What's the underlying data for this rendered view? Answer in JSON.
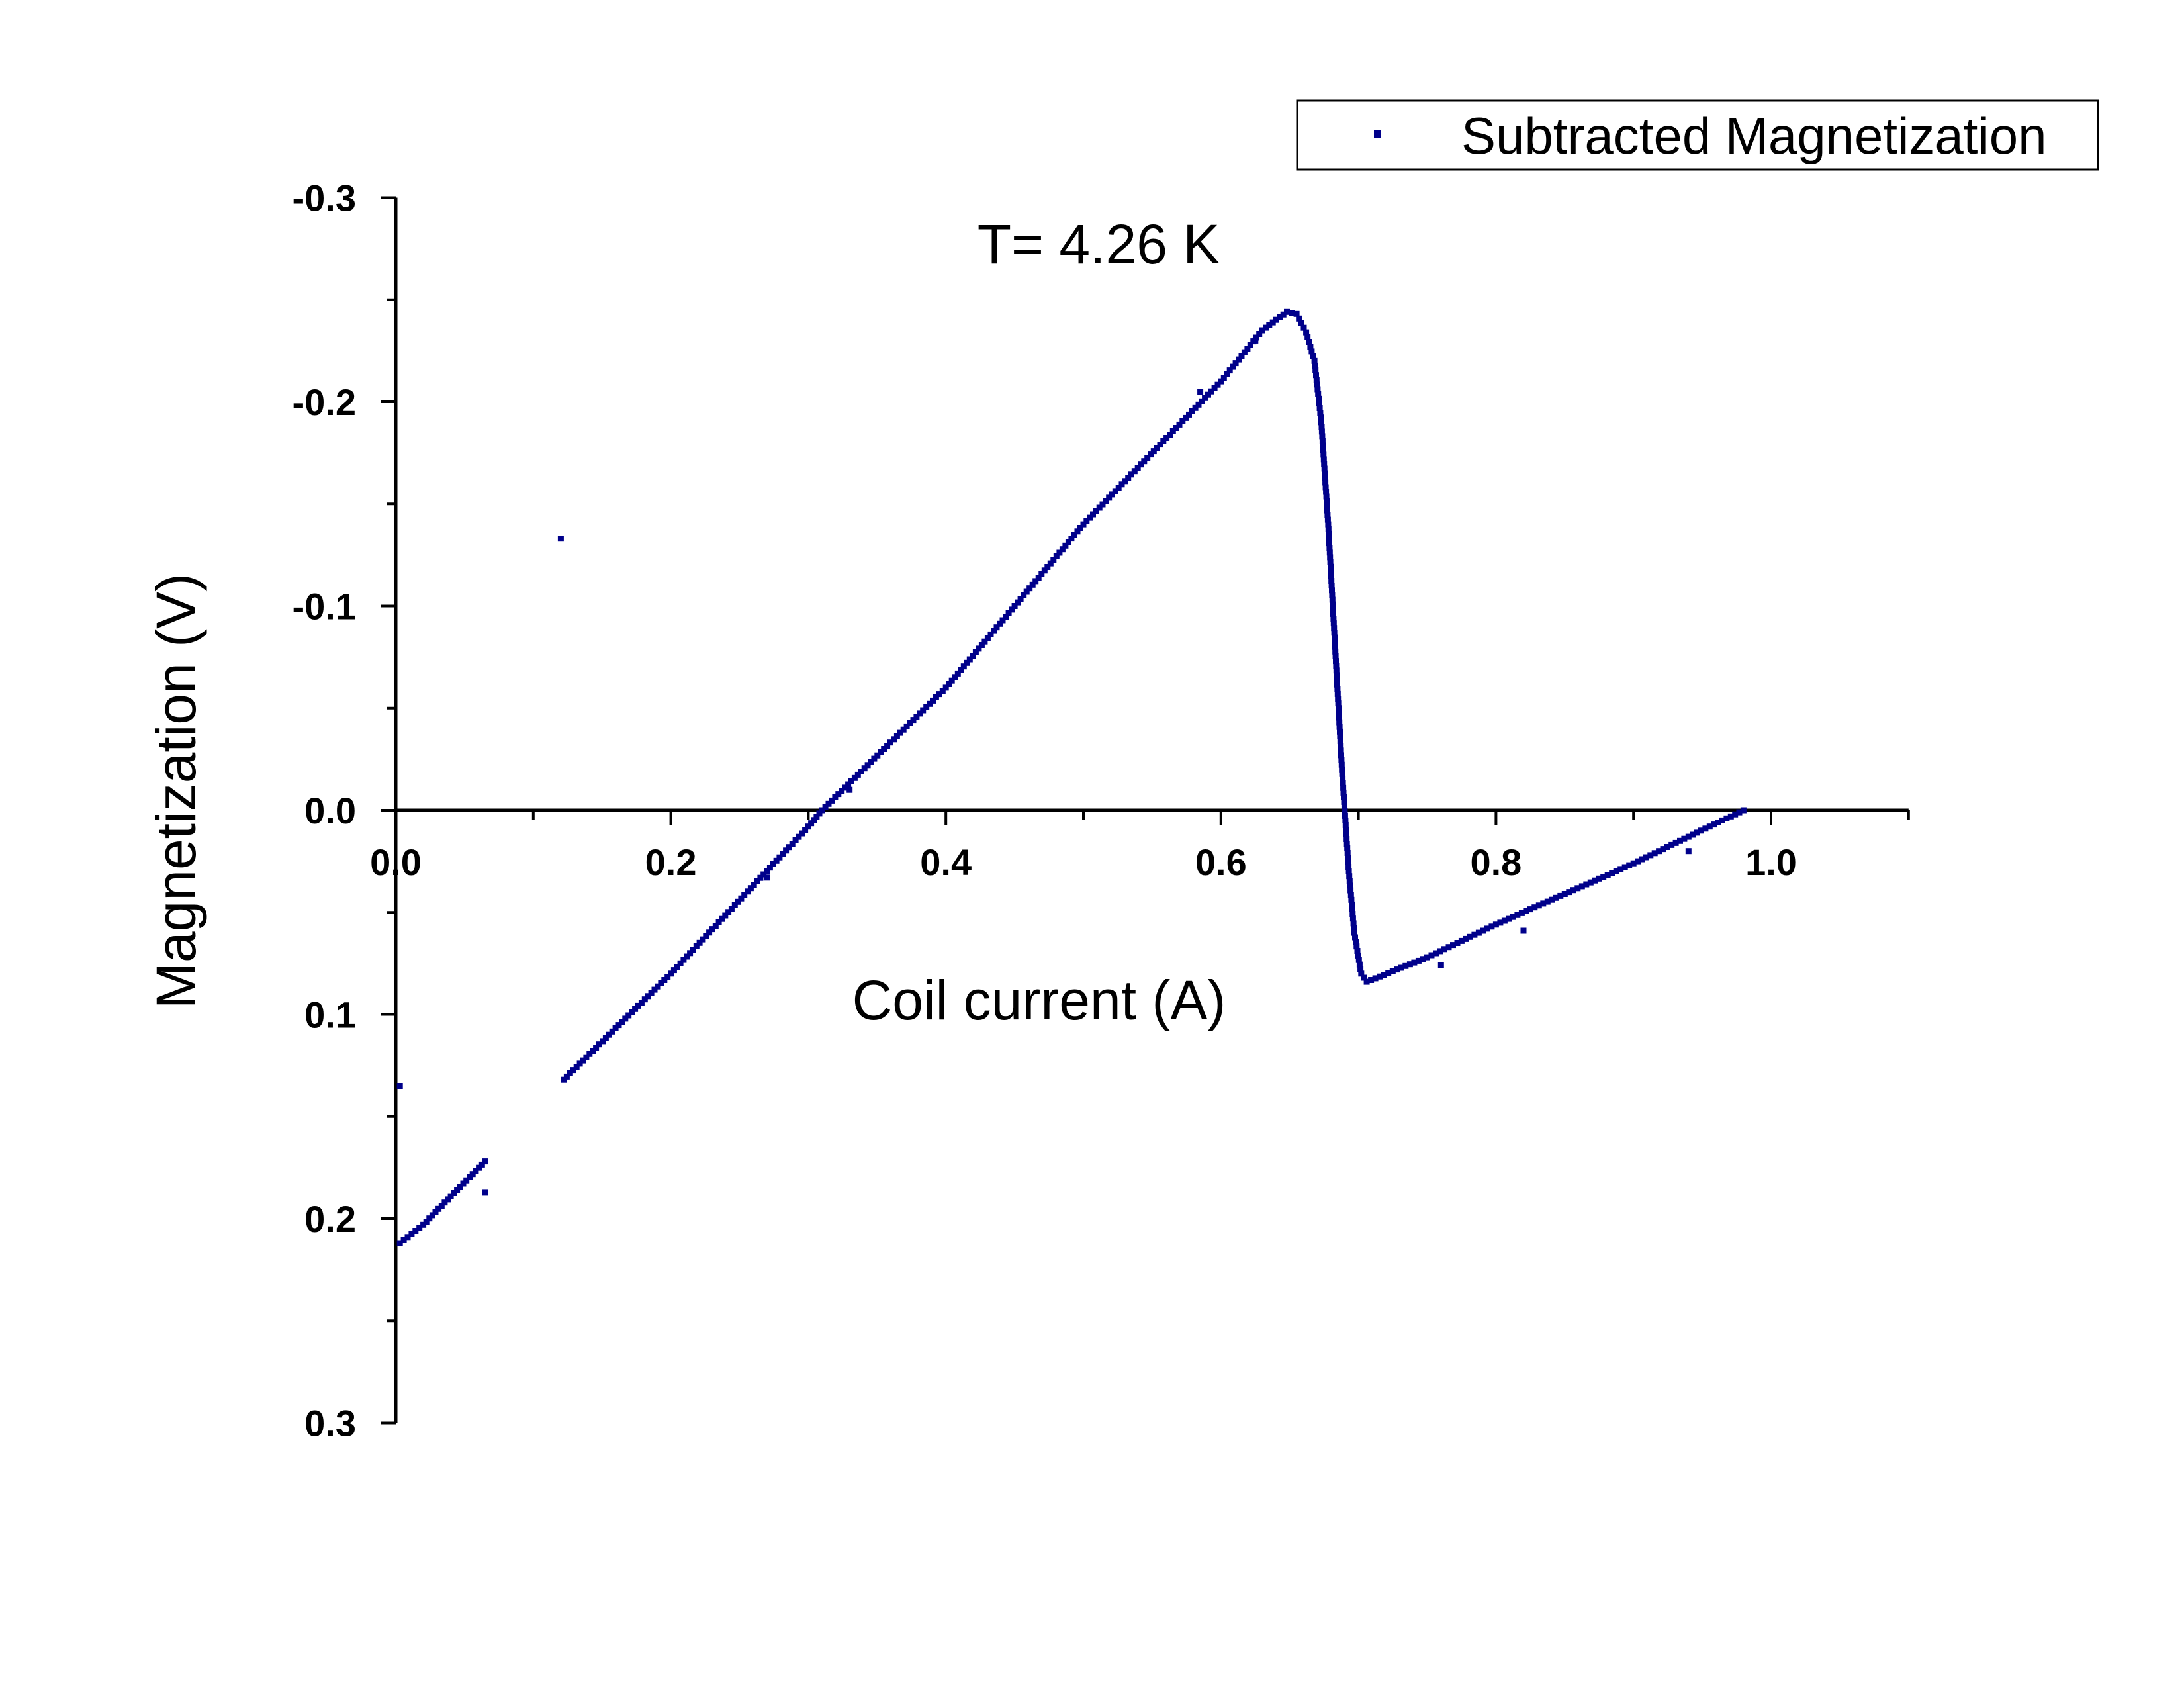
{
  "chart_data": {
    "type": "scatter",
    "title": "",
    "annotation": "T= 4.26 K",
    "xlabel": "Coil current (A)",
    "ylabel": "Magnetization (V)",
    "xlim": [
      0.0,
      1.1
    ],
    "ylim": [
      0.3,
      -0.3
    ],
    "y_axis_inverted": true,
    "x_ticks": [
      "0.0",
      "0.2",
      "0.4",
      "0.6",
      "0.8",
      "1.0"
    ],
    "x_tick_values": [
      0.0,
      0.2,
      0.4,
      0.6,
      0.8,
      1.0
    ],
    "y_ticks": [
      "-0.3",
      "-0.2",
      "-0.1",
      "0.0",
      "0.1",
      "0.2",
      "0.3"
    ],
    "y_tick_values": [
      -0.3,
      -0.2,
      -0.1,
      0.0,
      0.1,
      0.2,
      0.3
    ],
    "grid": false,
    "legend_position": "top-right",
    "series": [
      {
        "name": "Subtracted Magnetization",
        "color": "#00008B",
        "marker": "square",
        "segments": [
          [
            [
              0.003,
              0.212
            ],
            [
              0.02,
              0.203
            ],
            [
              0.04,
              0.189
            ],
            [
              0.065,
              0.172
            ]
          ],
          [
            [
              0.122,
              0.132
            ],
            [
              0.2,
              0.08
            ],
            [
              0.3,
              0.008
            ],
            [
              0.31,
              0.0
            ],
            [
              0.4,
              -0.06
            ],
            [
              0.5,
              -0.14
            ],
            [
              0.6,
              -0.21
            ],
            [
              0.63,
              -0.235
            ],
            [
              0.648,
              -0.244
            ],
            [
              0.655,
              -0.243
            ],
            [
              0.662,
              -0.234
            ],
            [
              0.668,
              -0.22
            ],
            [
              0.673,
              -0.19
            ],
            [
              0.678,
              -0.14
            ],
            [
              0.683,
              -0.08
            ],
            [
              0.688,
              -0.02
            ],
            [
              0.693,
              0.03
            ],
            [
              0.697,
              0.06
            ],
            [
              0.702,
              0.08
            ],
            [
              0.706,
              0.084
            ],
            [
              0.75,
              0.072
            ],
            [
              0.8,
              0.056
            ],
            [
              0.9,
              0.026
            ],
            [
              0.98,
              0.0
            ]
          ]
        ],
        "outliers": [
          [
            0.12,
            -0.133
          ],
          [
            0.003,
            0.135
          ],
          [
            0.065,
            0.187
          ],
          [
            0.27,
            0.033
          ],
          [
            0.33,
            -0.01
          ],
          [
            0.585,
            -0.205
          ],
          [
            0.625,
            -0.23
          ],
          [
            0.76,
            0.076
          ],
          [
            0.82,
            0.059
          ],
          [
            0.94,
            0.02
          ]
        ]
      }
    ]
  }
}
